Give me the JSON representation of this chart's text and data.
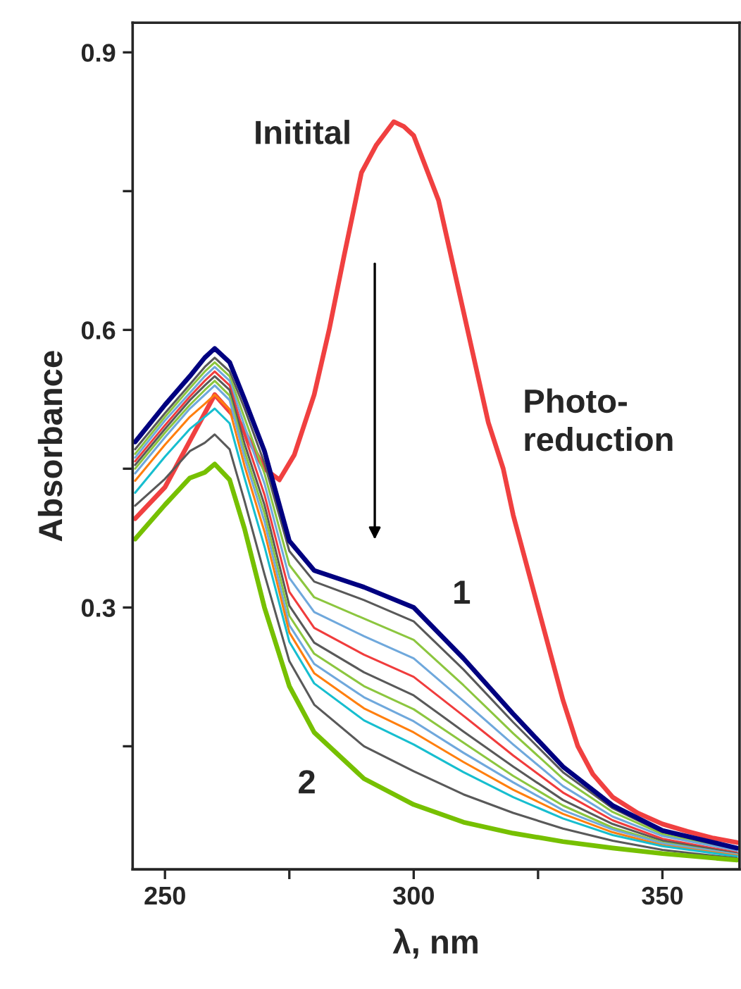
{
  "chart_data": {
    "type": "line",
    "xlabel": "λ, nm",
    "ylabel": "Absorbance",
    "x": [
      244,
      250,
      255,
      258,
      260,
      263,
      266,
      270,
      275,
      280,
      290,
      300,
      310,
      320,
      330,
      340,
      350,
      365
    ],
    "series": [
      {
        "color": "#f04040",
        "x": [
          244,
          250,
          255,
          260,
          265,
          270,
          273,
          276,
          280,
          283,
          286,
          289.5,
          292.5,
          296,
          298,
          300,
          305,
          310,
          315,
          318,
          320,
          325,
          330,
          333,
          336,
          340,
          345,
          350,
          355,
          360,
          365
        ],
        "values": [
          0.396,
          0.43,
          0.48,
          0.53,
          0.5,
          0.45,
          0.438,
          0.465,
          0.53,
          0.6,
          0.68,
          0.77,
          0.8,
          0.825,
          0.82,
          0.81,
          0.74,
          0.62,
          0.5,
          0.45,
          0.4,
          0.3,
          0.2,
          0.15,
          0.12,
          0.095,
          0.078,
          0.066,
          0.058,
          0.051,
          0.046
        ]
      },
      {
        "color": "#595959",
        "values": [
          0.471,
          0.51,
          0.541,
          0.56,
          0.57,
          0.555,
          0.515,
          0.456,
          0.361,
          0.328,
          0.308,
          0.285,
          0.233,
          0.176,
          0.122,
          0.083,
          0.057,
          0.039
        ]
      },
      {
        "color": "#8cc63f",
        "values": [
          0.466,
          0.506,
          0.537,
          0.555,
          0.565,
          0.55,
          0.505,
          0.445,
          0.346,
          0.311,
          0.288,
          0.265,
          0.216,
          0.164,
          0.115,
          0.079,
          0.055,
          0.038
        ]
      },
      {
        "color": "#6fa8dc",
        "values": [
          0.462,
          0.502,
          0.532,
          0.55,
          0.56,
          0.545,
          0.496,
          0.434,
          0.332,
          0.295,
          0.269,
          0.245,
          0.199,
          0.152,
          0.107,
          0.074,
          0.053,
          0.037
        ]
      },
      {
        "color": "#f03c3c",
        "values": [
          0.458,
          0.497,
          0.528,
          0.545,
          0.555,
          0.54,
          0.486,
          0.422,
          0.317,
          0.278,
          0.249,
          0.225,
          0.183,
          0.14,
          0.1,
          0.07,
          0.05,
          0.035
        ]
      },
      {
        "color": "#595959",
        "values": [
          0.454,
          0.493,
          0.524,
          0.54,
          0.55,
          0.535,
          0.477,
          0.411,
          0.302,
          0.262,
          0.23,
          0.205,
          0.166,
          0.128,
          0.092,
          0.066,
          0.048,
          0.034
        ]
      },
      {
        "color": "#8cc63f",
        "values": [
          0.45,
          0.489,
          0.519,
          0.535,
          0.545,
          0.529,
          0.469,
          0.402,
          0.291,
          0.25,
          0.215,
          0.19,
          0.154,
          0.118,
          0.086,
          0.062,
          0.046,
          0.033
        ]
      },
      {
        "color": "#6fa8dc",
        "values": [
          0.445,
          0.484,
          0.515,
          0.53,
          0.54,
          0.524,
          0.462,
          0.393,
          0.281,
          0.239,
          0.203,
          0.177,
          0.143,
          0.111,
          0.081,
          0.06,
          0.045,
          0.033
        ]
      },
      {
        "color": "#ff7f0e",
        "values": [
          0.437,
          0.476,
          0.506,
          0.52,
          0.53,
          0.514,
          0.453,
          0.382,
          0.273,
          0.229,
          0.191,
          0.165,
          0.133,
          0.103,
          0.077,
          0.057,
          0.043,
          0.032
        ]
      },
      {
        "color": "#17becf",
        "values": [
          0.424,
          0.463,
          0.493,
          0.506,
          0.515,
          0.499,
          0.44,
          0.366,
          0.263,
          0.218,
          0.178,
          0.152,
          0.122,
          0.095,
          0.072,
          0.054,
          0.042,
          0.031
        ]
      },
      {
        "color": "#595959",
        "values": [
          0.41,
          0.439,
          0.469,
          0.478,
          0.487,
          0.471,
          0.415,
          0.336,
          0.242,
          0.195,
          0.15,
          0.123,
          0.098,
          0.078,
          0.061,
          0.048,
          0.038,
          0.029
        ]
      },
      {
        "color": "#000080",
        "values": [
          0.479,
          0.519,
          0.55,
          0.57,
          0.58,
          0.565,
          0.525,
          0.469,
          0.372,
          0.34,
          0.322,
          0.3,
          0.245,
          0.185,
          0.128,
          0.086,
          0.059,
          0.04
        ]
      },
      {
        "color": "#76c000",
        "values": [
          0.374,
          0.411,
          0.44,
          0.446,
          0.455,
          0.438,
          0.385,
          0.3,
          0.215,
          0.165,
          0.115,
          0.087,
          0.068,
          0.056,
          0.047,
          0.04,
          0.034,
          0.027
        ]
      }
    ],
    "xlim": [
      243.5,
      365.5
    ],
    "ylim": [
      0.017,
      0.932
    ],
    "xticks": [
      250,
      {
        "value": 275,
        "label": null
      },
      300,
      {
        "value": 325,
        "label": null
      },
      350
    ],
    "yticks": [
      {
        "value": 0.15,
        "label": null
      },
      0.3,
      {
        "value": 0.45,
        "label": null
      },
      0.6,
      {
        "value": 0.75,
        "label": null
      },
      0.9
    ],
    "annotations": [
      "Initital",
      "1",
      "2",
      "Photo-\nreduction"
    ],
    "grid": false,
    "legend": false,
    "marker": "none",
    "line_style": "solid"
  }
}
